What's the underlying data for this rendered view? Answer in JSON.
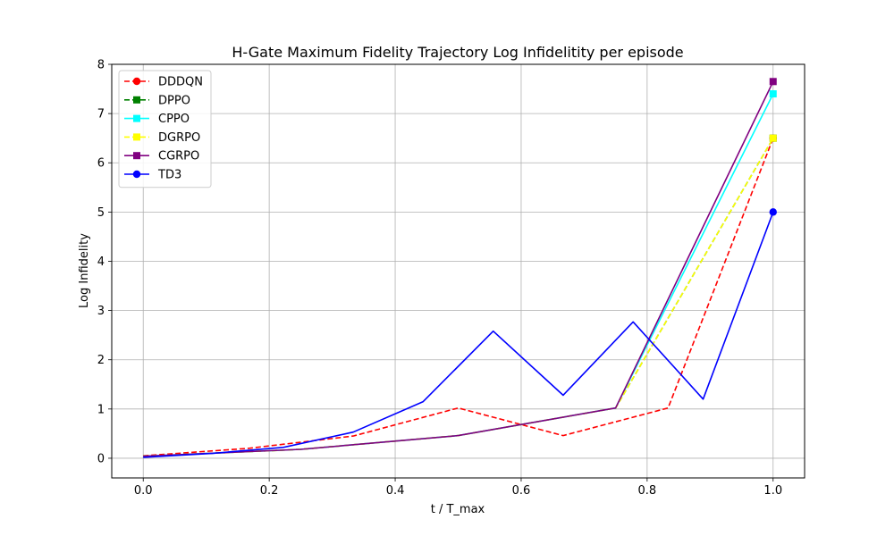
{
  "chart_data": {
    "type": "line",
    "title": "H-Gate Maximum Fidelity Trajectory Log Infidelitity per episode",
    "xlabel": "t / T_max",
    "ylabel": "Log Infidelity",
    "xlim": [
      -0.05,
      1.05
    ],
    "ylim": [
      -0.4,
      8.0
    ],
    "xticks": [
      "0.0",
      "0.2",
      "0.4",
      "0.6",
      "0.8",
      "1.0"
    ],
    "xtick_values": [
      0.0,
      0.2,
      0.4,
      0.6,
      0.8,
      1.0
    ],
    "yticks": [
      "0",
      "1",
      "2",
      "3",
      "4",
      "5",
      "6",
      "7",
      "8"
    ],
    "ytick_values": [
      0,
      1,
      2,
      3,
      4,
      5,
      6,
      7,
      8
    ],
    "grid": true,
    "legend_position": "upper-left",
    "series": [
      {
        "name": "DDDQN",
        "color": "#ff0000",
        "dashed": true,
        "marker": "circle",
        "x": [
          0.0,
          0.1667,
          0.3333,
          0.5,
          0.6667,
          0.8333,
          1.0
        ],
        "y": [
          0.05,
          0.2,
          0.45,
          1.02,
          0.46,
          1.02,
          6.5
        ]
      },
      {
        "name": "DPPO",
        "color": "#008000",
        "dashed": true,
        "marker": "square",
        "x": [
          0.0,
          0.25,
          0.5,
          0.75,
          1.0
        ],
        "y": [
          0.04,
          0.18,
          0.46,
          1.02,
          6.5
        ]
      },
      {
        "name": "CPPO",
        "color": "#00ffff",
        "dashed": false,
        "marker": "square",
        "x": [
          0.0,
          0.25,
          0.5,
          0.75,
          1.0
        ],
        "y": [
          0.04,
          0.18,
          0.46,
          1.02,
          7.4
        ]
      },
      {
        "name": "DGRPO",
        "color": "#ffff00",
        "dashed": true,
        "marker": "square",
        "x": [
          0.0,
          0.25,
          0.5,
          0.75,
          1.0
        ],
        "y": [
          0.04,
          0.18,
          0.46,
          1.02,
          6.5
        ]
      },
      {
        "name": "CGRPO",
        "color": "#800080",
        "dashed": false,
        "marker": "square",
        "x": [
          0.0,
          0.25,
          0.5,
          0.75,
          1.0
        ],
        "y": [
          0.04,
          0.18,
          0.46,
          1.02,
          7.65
        ]
      },
      {
        "name": "TD3",
        "color": "#0000ff",
        "dashed": false,
        "marker": "circle",
        "x": [
          0.0,
          0.1111,
          0.2222,
          0.3333,
          0.4444,
          0.5556,
          0.6667,
          0.7778,
          0.8889,
          1.0
        ],
        "y": [
          0.02,
          0.1,
          0.22,
          0.53,
          1.15,
          2.58,
          1.28,
          2.77,
          1.2,
          5.0
        ]
      }
    ]
  }
}
